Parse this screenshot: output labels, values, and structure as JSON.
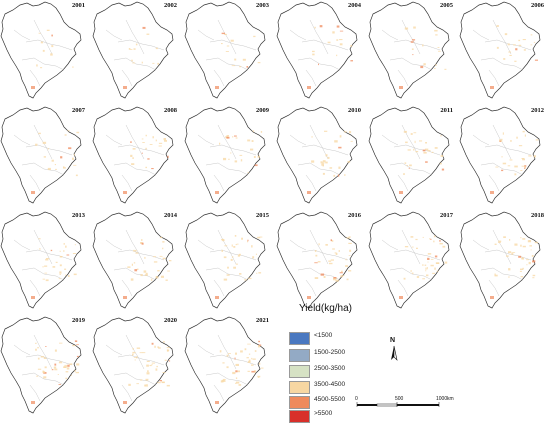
{
  "maps": [
    {
      "year": "2001"
    },
    {
      "year": "2002"
    },
    {
      "year": "2003"
    },
    {
      "year": "2004"
    },
    {
      "year": "2005"
    },
    {
      "year": "2006"
    },
    {
      "year": "2007"
    },
    {
      "year": "2008"
    },
    {
      "year": "2009"
    },
    {
      "year": "2010"
    },
    {
      "year": "2011"
    },
    {
      "year": "2012"
    },
    {
      "year": "2013"
    },
    {
      "year": "2014"
    },
    {
      "year": "2015"
    },
    {
      "year": "2016"
    },
    {
      "year": "2017"
    },
    {
      "year": "2018"
    },
    {
      "year": "2019"
    },
    {
      "year": "2020"
    },
    {
      "year": "2021"
    }
  ],
  "legend": {
    "title": "Yield(kg/ha)",
    "items": [
      {
        "label": "<1500",
        "color": "#4a78c0"
      },
      {
        "label": "1500-2500",
        "color": "#93aac5"
      },
      {
        "label": "2500-3500",
        "color": "#d6e2c4"
      },
      {
        "label": "3500-4500",
        "color": "#f7d7a2"
      },
      {
        "label": "4500-5500",
        "color": "#ef8a5c"
      },
      {
        "label": ">5500",
        "color": "#d8302a"
      }
    ]
  },
  "north_arrow": {
    "label": "N"
  },
  "scale_bar": {
    "ticks": [
      "0",
      "500",
      "1000"
    ],
    "unit": "km"
  }
}
